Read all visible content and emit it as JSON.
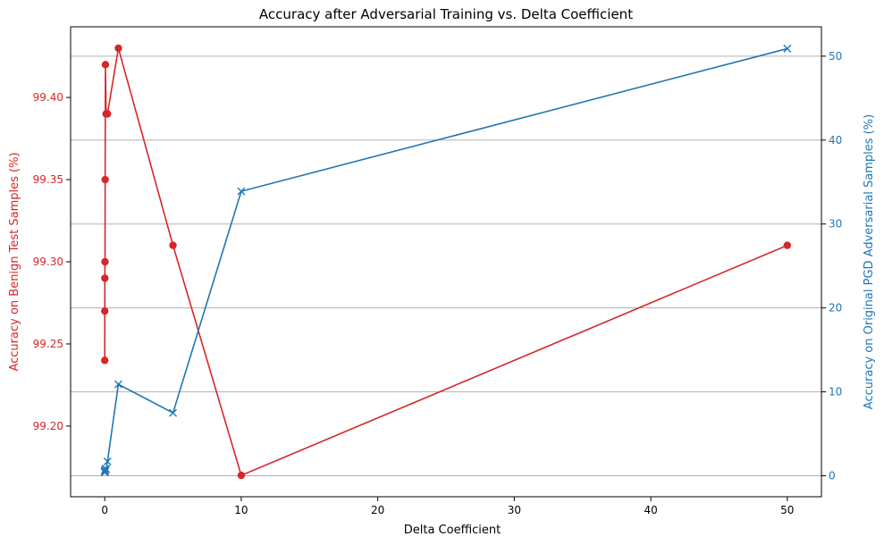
{
  "chart_data": {
    "type": "line",
    "title": "Accuracy after Adversarial Training vs. Delta Coefficient",
    "xlabel": "Delta Coefficient",
    "ylabel_left": "Accuracy on Benign Test Samples (%)",
    "ylabel_right": "Accuracy on Original PGD Adversarial Samples (%)",
    "xlim": [
      -2.5,
      52.5
    ],
    "ylim_left": [
      99.157,
      99.443
    ],
    "ylim_right": [
      -2.5,
      53.5
    ],
    "x_ticks": [
      0,
      10,
      20,
      30,
      40,
      50
    ],
    "x_tick_labels": [
      "0",
      "10",
      "20",
      "30",
      "40",
      "50"
    ],
    "y_left_ticks": [
      99.2,
      99.25,
      99.3,
      99.35,
      99.4
    ],
    "y_left_tick_labels": [
      "99.20",
      "99.25",
      "99.30",
      "99.35",
      "99.40"
    ],
    "y_right_ticks": [
      0,
      10,
      20,
      30,
      40,
      50
    ],
    "y_right_tick_labels": [
      "0",
      "10",
      "20",
      "30",
      "40",
      "50"
    ],
    "grid": "horizontal lines on right axis",
    "series": [
      {
        "axis": "left",
        "color": "#d62728",
        "marker": "circle",
        "x": [
          0.001,
          0.005,
          0.01,
          0.02,
          0.03,
          0.05,
          0.1,
          0.2,
          1,
          5,
          10,
          50
        ],
        "values": [
          99.24,
          99.27,
          99.29,
          99.3,
          99.35,
          99.42,
          99.39,
          99.39,
          99.43,
          99.31,
          99.17,
          99.31
        ]
      },
      {
        "axis": "right",
        "color": "#1f77b4",
        "marker": "x",
        "x": [
          0.001,
          0.005,
          0.01,
          0.02,
          0.05,
          0.1,
          0.2,
          1,
          5,
          10,
          50
        ],
        "values": [
          0.4,
          0.5,
          0.6,
          0.6,
          0.8,
          0.8,
          1.7,
          10.9,
          7.5,
          33.9,
          50.9
        ]
      }
    ],
    "colors": {
      "left_axis": "#d62728",
      "right_axis": "#1f77b4",
      "grid": "#b0b0b0"
    }
  }
}
